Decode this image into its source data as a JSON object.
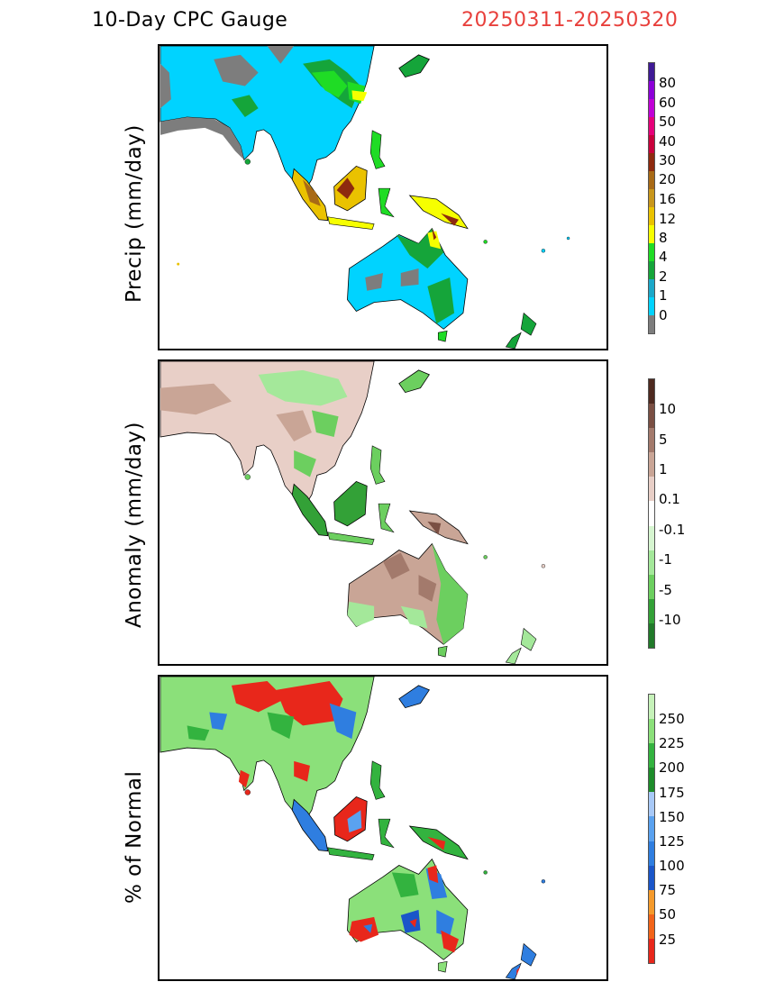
{
  "header": {
    "title": "10-Day CPC Gauge",
    "date_range": "20250311-20250320"
  },
  "panels": [
    {
      "ylabel": "Precip (mm/day)",
      "colorbar": {
        "colors": [
          "#7d7d7d",
          "#00d3ff",
          "#1ba8c9",
          "#15a53a",
          "#1fdc25",
          "#f6ff00",
          "#eac200",
          "#c8961b",
          "#a86a16",
          "#8e2a0e",
          "#c8003c",
          "#e6007a",
          "#c000d6",
          "#8c00d8",
          "#3f1a96"
        ],
        "labels": [
          "80",
          "60",
          "50",
          "40",
          "30",
          "20",
          "16",
          "12",
          "8",
          "4",
          "2",
          "1",
          "0"
        ]
      }
    },
    {
      "ylabel": "Anomaly (mm/day)",
      "colorbar": {
        "colors": [
          "#217a2a",
          "#33a137",
          "#6ccf5f",
          "#a4e89a",
          "#d6f5d0",
          "#ffffff",
          "#e8cfc7",
          "#c9a596",
          "#a37a6c",
          "#7a4f43",
          "#4e2a20"
        ],
        "labels": [
          "10",
          "5",
          "1",
          "0.1",
          "-0.1",
          "-1",
          "-5",
          "-10"
        ]
      }
    },
    {
      "ylabel": "% of Normal",
      "colorbar": {
        "colors": [
          "#e8271b",
          "#f26419",
          "#f59a2b",
          "#1a56c9",
          "#2f7ee0",
          "#5aa2f0",
          "#a8c9f7",
          "#1d8c2a",
          "#33b33f",
          "#8be07a",
          "#c6f2b9"
        ],
        "labels": [
          "250",
          "225",
          "200",
          "175",
          "150",
          "125",
          "100",
          "75",
          "50",
          "25"
        ]
      }
    }
  ]
}
